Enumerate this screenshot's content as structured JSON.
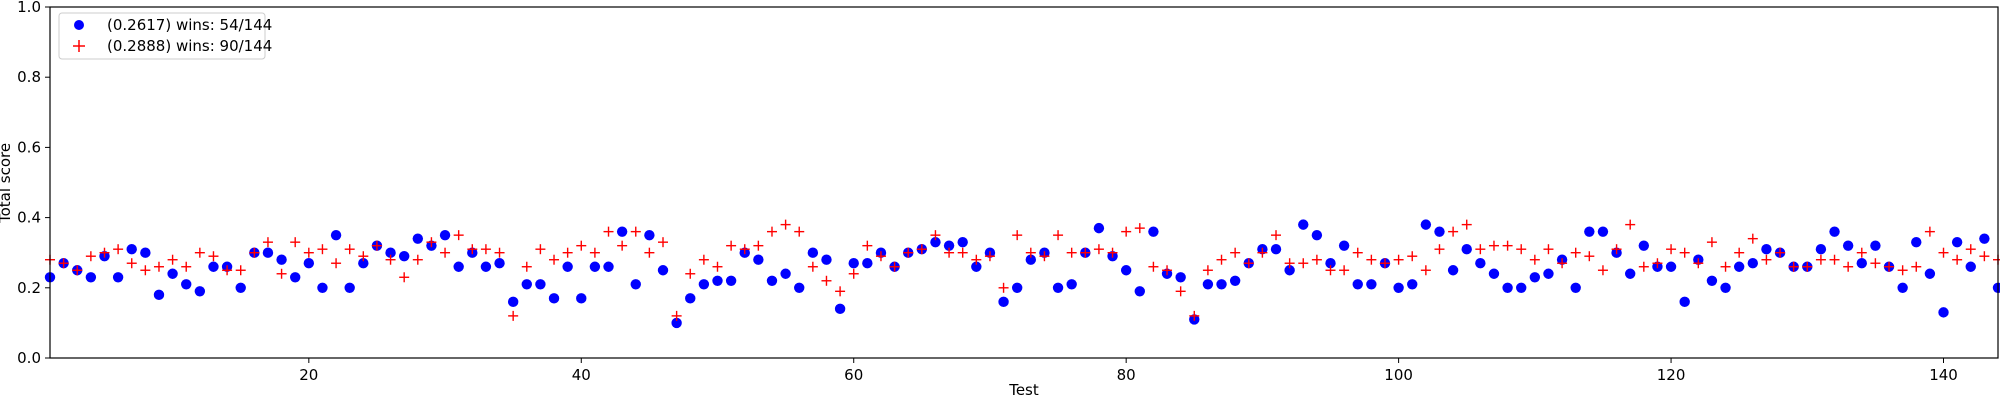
{
  "chart_data": {
    "type": "scatter",
    "title": "",
    "xlabel": "Test",
    "ylabel": "Total score",
    "xlim": [
      1,
      144
    ],
    "ylim": [
      0.0,
      1.0
    ],
    "x_ticks": [
      20,
      40,
      60,
      80,
      100,
      120,
      140
    ],
    "y_ticks": [
      0.0,
      0.2,
      0.4,
      0.6,
      0.8,
      1.0
    ],
    "x_tick_labels": [
      "20",
      "40",
      "60",
      "80",
      "100",
      "120",
      "140"
    ],
    "y_tick_labels": [
      "0.0",
      "0.2",
      "0.4",
      "0.6",
      "0.8",
      "1.0"
    ],
    "grid": false,
    "legend_position": "top-left",
    "series": [
      {
        "name": "(0.2617) wins: 54/144",
        "marker": "circle",
        "color": "#0000ff",
        "values": [
          0.23,
          0.27,
          0.25,
          0.23,
          0.29,
          0.23,
          0.31,
          0.3,
          0.18,
          0.24,
          0.21,
          0.19,
          0.26,
          0.26,
          0.2,
          0.3,
          0.3,
          0.28,
          0.23,
          0.27,
          0.2,
          0.35,
          0.2,
          0.27,
          0.32,
          0.3,
          0.29,
          0.34,
          0.32,
          0.35,
          0.26,
          0.3,
          0.26,
          0.27,
          0.16,
          0.21,
          0.21,
          0.17,
          0.26,
          0.17,
          0.26,
          0.26,
          0.36,
          0.21,
          0.35,
          0.25,
          0.1,
          0.17,
          0.21,
          0.22,
          0.22,
          0.3,
          0.28,
          0.22,
          0.24,
          0.2,
          0.3,
          0.28,
          0.14,
          0.27,
          0.27,
          0.3,
          0.26,
          0.3,
          0.31,
          0.33,
          0.32,
          0.33,
          0.26,
          0.3,
          0.16,
          0.2,
          0.28,
          0.3,
          0.2,
          0.21,
          0.3,
          0.37,
          0.29,
          0.25,
          0.19,
          0.36,
          0.24,
          0.23,
          0.11,
          0.21,
          0.21,
          0.22,
          0.27,
          0.31,
          0.31,
          0.25,
          0.38,
          0.35,
          0.27,
          0.32,
          0.21,
          0.21,
          0.27,
          0.2,
          0.21,
          0.38,
          0.36,
          0.25,
          0.31,
          0.27,
          0.24,
          0.2,
          0.2,
          0.23,
          0.24,
          0.28,
          0.2,
          0.36,
          0.36,
          0.3,
          0.24,
          0.32,
          0.26,
          0.26,
          0.16,
          0.28,
          0.22,
          0.2,
          0.26,
          0.27,
          0.31,
          0.3,
          0.26,
          0.26,
          0.31,
          0.36,
          0.32,
          0.27,
          0.32,
          0.26,
          0.2,
          0.33,
          0.24,
          0.13,
          0.33,
          0.26,
          0.34,
          0.2
        ]
      },
      {
        "name": "(0.2888) wins: 90/144",
        "marker": "plus",
        "color": "#ff0000",
        "values": [
          0.28,
          0.27,
          0.25,
          0.29,
          0.3,
          0.31,
          0.27,
          0.25,
          0.26,
          0.28,
          0.26,
          0.3,
          0.29,
          0.25,
          0.25,
          0.3,
          0.33,
          0.24,
          0.33,
          0.3,
          0.31,
          0.27,
          0.31,
          0.29,
          0.32,
          0.28,
          0.23,
          0.28,
          0.33,
          0.3,
          0.35,
          0.31,
          0.31,
          0.3,
          0.12,
          0.26,
          0.31,
          0.28,
          0.3,
          0.32,
          0.3,
          0.36,
          0.32,
          0.36,
          0.3,
          0.33,
          0.12,
          0.24,
          0.28,
          0.26,
          0.32,
          0.31,
          0.32,
          0.36,
          0.38,
          0.36,
          0.26,
          0.22,
          0.19,
          0.24,
          0.32,
          0.29,
          0.26,
          0.3,
          0.31,
          0.35,
          0.3,
          0.3,
          0.28,
          0.29,
          0.2,
          0.35,
          0.3,
          0.29,
          0.35,
          0.3,
          0.3,
          0.31,
          0.3,
          0.36,
          0.37,
          0.26,
          0.25,
          0.19,
          0.12,
          0.25,
          0.28,
          0.3,
          0.27,
          0.3,
          0.35,
          0.27,
          0.27,
          0.28,
          0.25,
          0.25,
          0.3,
          0.28,
          0.27,
          0.28,
          0.29,
          0.25,
          0.31,
          0.36,
          0.38,
          0.31,
          0.32,
          0.32,
          0.31,
          0.28,
          0.31,
          0.27,
          0.3,
          0.29,
          0.25,
          0.31,
          0.38,
          0.26,
          0.27,
          0.31,
          0.3,
          0.27,
          0.33,
          0.26,
          0.3,
          0.34,
          0.28,
          0.3,
          0.26,
          0.26,
          0.28,
          0.28,
          0.26,
          0.3,
          0.27,
          0.26,
          0.25,
          0.26,
          0.36,
          0.3,
          0.28,
          0.31,
          0.29,
          0.28
        ]
      }
    ]
  }
}
